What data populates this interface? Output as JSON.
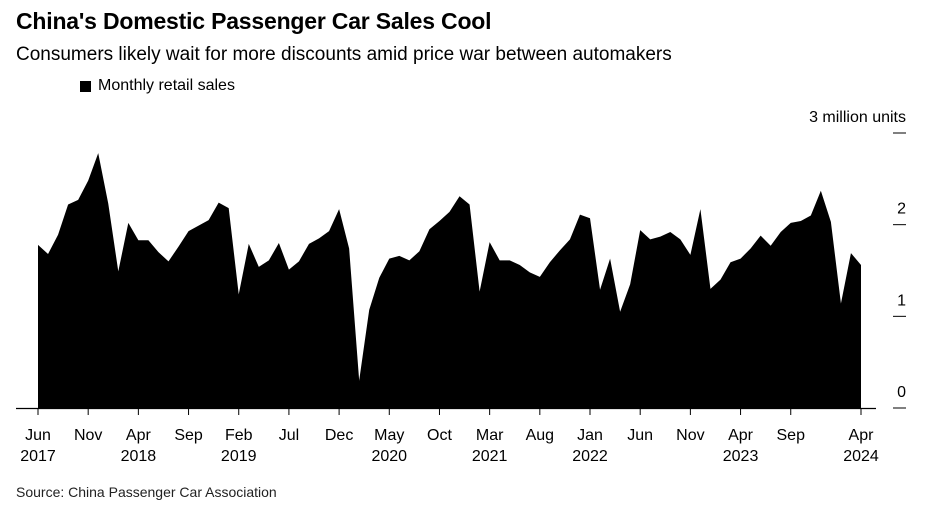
{
  "title": "China's Domestic Passenger Car Sales Cool",
  "subtitle": "Consumers likely wait for more discounts amid price war between automakers",
  "source": "Source: China Passenger Car Association",
  "legend": {
    "label": "Monthly retail sales",
    "color": "#000000"
  },
  "chart_data": {
    "type": "area",
    "series": [
      {
        "name": "Monthly retail sales",
        "color": "#000000"
      }
    ],
    "x_start": "2017-06",
    "x_end": "2024-04",
    "x": [
      "2017-06",
      "2017-07",
      "2017-08",
      "2017-09",
      "2017-10",
      "2017-11",
      "2017-12",
      "2018-01",
      "2018-02",
      "2018-03",
      "2018-04",
      "2018-05",
      "2018-06",
      "2018-07",
      "2018-08",
      "2018-09",
      "2018-10",
      "2018-11",
      "2018-12",
      "2019-01",
      "2019-02",
      "2019-03",
      "2019-04",
      "2019-05",
      "2019-06",
      "2019-07",
      "2019-08",
      "2019-09",
      "2019-10",
      "2019-11",
      "2019-12",
      "2020-01",
      "2020-02",
      "2020-03",
      "2020-04",
      "2020-05",
      "2020-06",
      "2020-07",
      "2020-08",
      "2020-09",
      "2020-10",
      "2020-11",
      "2020-12",
      "2021-01",
      "2021-02",
      "2021-03",
      "2021-04",
      "2021-05",
      "2021-06",
      "2021-07",
      "2021-08",
      "2021-09",
      "2021-10",
      "2021-11",
      "2021-12",
      "2022-01",
      "2022-02",
      "2022-03",
      "2022-04",
      "2022-05",
      "2022-06",
      "2022-07",
      "2022-08",
      "2022-09",
      "2022-10",
      "2022-11",
      "2022-12",
      "2023-01",
      "2023-02",
      "2023-03",
      "2023-04",
      "2023-05",
      "2023-06",
      "2023-07",
      "2023-08",
      "2023-09",
      "2023-10",
      "2023-11",
      "2023-12",
      "2024-01",
      "2024-02",
      "2024-03",
      "2024-04"
    ],
    "values": [
      1.78,
      1.68,
      1.89,
      2.22,
      2.27,
      2.48,
      2.78,
      2.23,
      1.49,
      2.02,
      1.83,
      1.83,
      1.7,
      1.6,
      1.76,
      1.93,
      1.99,
      2.05,
      2.24,
      2.18,
      1.24,
      1.79,
      1.54,
      1.61,
      1.8,
      1.51,
      1.6,
      1.79,
      1.85,
      1.93,
      2.17,
      1.74,
      0.3,
      1.07,
      1.42,
      1.63,
      1.66,
      1.61,
      1.71,
      1.95,
      2.04,
      2.14,
      2.31,
      2.22,
      1.27,
      1.81,
      1.61,
      1.61,
      1.56,
      1.48,
      1.43,
      1.59,
      1.72,
      1.84,
      2.11,
      2.07,
      1.29,
      1.63,
      1.05,
      1.35,
      1.94,
      1.84,
      1.87,
      1.92,
      1.84,
      1.67,
      2.17,
      1.3,
      1.4,
      1.59,
      1.63,
      1.74,
      1.88,
      1.77,
      1.92,
      2.02,
      2.04,
      2.1,
      2.37,
      2.03,
      1.14,
      1.69,
      1.56
    ],
    "ylabel": "3 million units",
    "y_ticks": [
      {
        "value": 0,
        "label": "0"
      },
      {
        "value": 1,
        "label": "1"
      },
      {
        "value": 2,
        "label": "2"
      },
      {
        "value": 3,
        "label": ""
      }
    ],
    "ylim": [
      0,
      3
    ],
    "x_ticks": [
      {
        "date": "2017-06",
        "month": "Jun",
        "year": "2017"
      },
      {
        "date": "2017-11",
        "month": "Nov",
        "year": ""
      },
      {
        "date": "2018-04",
        "month": "Apr",
        "year": "2018"
      },
      {
        "date": "2018-09",
        "month": "Sep",
        "year": ""
      },
      {
        "date": "2019-02",
        "month": "Feb",
        "year": "2019"
      },
      {
        "date": "2019-07",
        "month": "Jul",
        "year": ""
      },
      {
        "date": "2019-12",
        "month": "Dec",
        "year": ""
      },
      {
        "date": "2020-05",
        "month": "May",
        "year": "2020"
      },
      {
        "date": "2020-10",
        "month": "Oct",
        "year": ""
      },
      {
        "date": "2021-03",
        "month": "Mar",
        "year": "2021"
      },
      {
        "date": "2021-08",
        "month": "Aug",
        "year": ""
      },
      {
        "date": "2022-01",
        "month": "Jan",
        "year": "2022"
      },
      {
        "date": "2022-06",
        "month": "Jun",
        "year": ""
      },
      {
        "date": "2022-11",
        "month": "Nov",
        "year": ""
      },
      {
        "date": "2023-04",
        "month": "Apr",
        "year": "2023"
      },
      {
        "date": "2023-09",
        "month": "Sep",
        "year": ""
      },
      {
        "date": "2024-04",
        "month": "Apr",
        "year": "2024"
      }
    ],
    "grid": false,
    "legend_position": "top-left"
  }
}
